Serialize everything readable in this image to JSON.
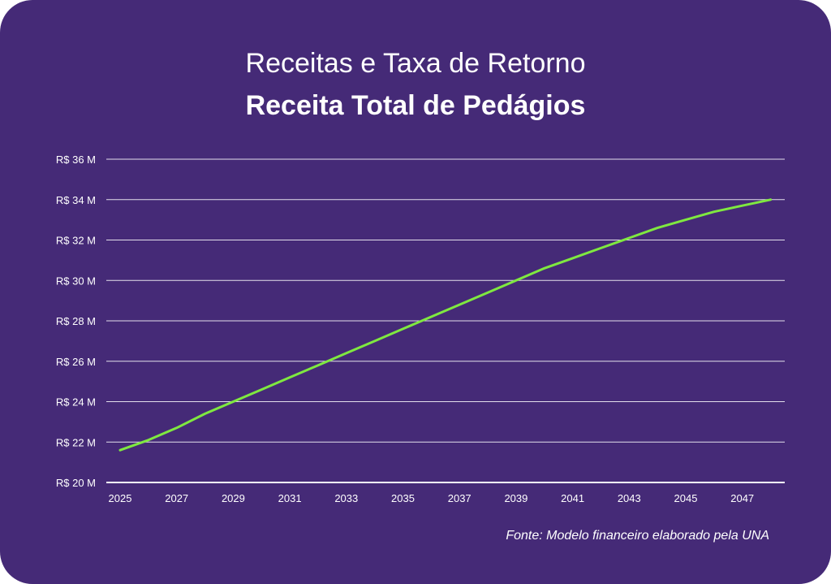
{
  "header": {
    "title": "Receitas e Taxa de Retorno",
    "subtitle": "Receita Total de Pedágios"
  },
  "source_note": "Fonte: Modelo financeiro elaborado pela UNA",
  "colors": {
    "background": "#452a77",
    "line": "#7fe840",
    "grid": "#ffffff",
    "text": "#ffffff"
  },
  "chart_data": {
    "type": "line",
    "title": "Receita Total de Pedágios",
    "xlabel": "",
    "ylabel": "",
    "xlim": [
      2025,
      2048
    ],
    "ylim": [
      20,
      36
    ],
    "x_ticks": [
      2025,
      2027,
      2029,
      2031,
      2033,
      2035,
      2037,
      2039,
      2041,
      2043,
      2045,
      2047
    ],
    "y_ticks": [
      20,
      22,
      24,
      26,
      28,
      30,
      32,
      34,
      36
    ],
    "y_tick_labels": [
      "R$ 20 M",
      "R$ 22 M",
      "R$ 24 M",
      "R$ 26 M",
      "R$ 28 M",
      "R$ 30 M",
      "R$ 32 M",
      "R$ 34 M",
      "R$ 36 M"
    ],
    "grid": true,
    "legend": "none",
    "series": [
      {
        "x": [
          2025,
          2026,
          2027,
          2028,
          2029,
          2030,
          2031,
          2032,
          2033,
          2034,
          2035,
          2036,
          2037,
          2038,
          2039,
          2040,
          2041,
          2042,
          2043,
          2044,
          2045,
          2046,
          2047,
          2048
        ],
        "values": [
          21.6,
          22.1,
          22.7,
          23.4,
          24.0,
          24.6,
          25.2,
          25.8,
          26.4,
          27.0,
          27.6,
          28.2,
          28.8,
          29.4,
          30.0,
          30.6,
          31.1,
          31.6,
          32.1,
          32.6,
          33.0,
          33.4,
          33.7,
          34.0
        ]
      }
    ]
  }
}
